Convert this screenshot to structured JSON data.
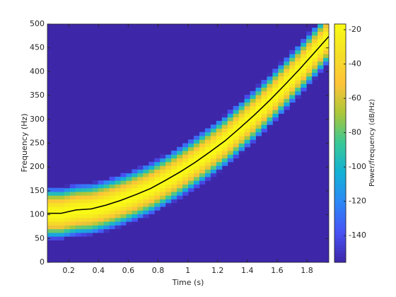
{
  "chart_data": {
    "type": "heatmap",
    "xlabel": "Time (s)",
    "ylabel": "Frequency (Hz)",
    "colorbar_label": "Power/frequency (dB/Hz)",
    "xlim": [
      0.057,
      1.947
    ],
    "ylim": [
      0,
      500
    ],
    "xticks": [
      0.2,
      0.4,
      0.6,
      0.8,
      1,
      1.2,
      1.4,
      1.6,
      1.8
    ],
    "yticks": [
      0,
      50,
      100,
      150,
      200,
      250,
      300,
      350,
      400,
      450,
      500
    ],
    "clim": [
      -155.6,
      -16.7
    ],
    "cticks": [
      -140,
      -120,
      -100,
      -80,
      -60,
      -40,
      -20
    ],
    "colormap": [
      "#3e26a8",
      "#4752f4",
      "#2d87f7",
      "#12b1d6",
      "#37c897",
      "#abc739",
      "#fec338",
      "#f5df26",
      "#f9fb15"
    ],
    "ridge": {
      "color": "#000000",
      "x": [
        0.05,
        0.15,
        0.25,
        0.35,
        0.45,
        0.55,
        0.65,
        0.75,
        0.85,
        0.95,
        1.05,
        1.15,
        1.25,
        1.35,
        1.45,
        1.55,
        1.65,
        1.75,
        1.85,
        1.95
      ],
      "values": [
        103,
        103,
        110,
        112,
        120,
        130,
        142,
        155,
        172,
        190,
        210,
        232,
        255,
        282,
        310,
        340,
        372,
        405,
        440,
        475
      ]
    }
  }
}
